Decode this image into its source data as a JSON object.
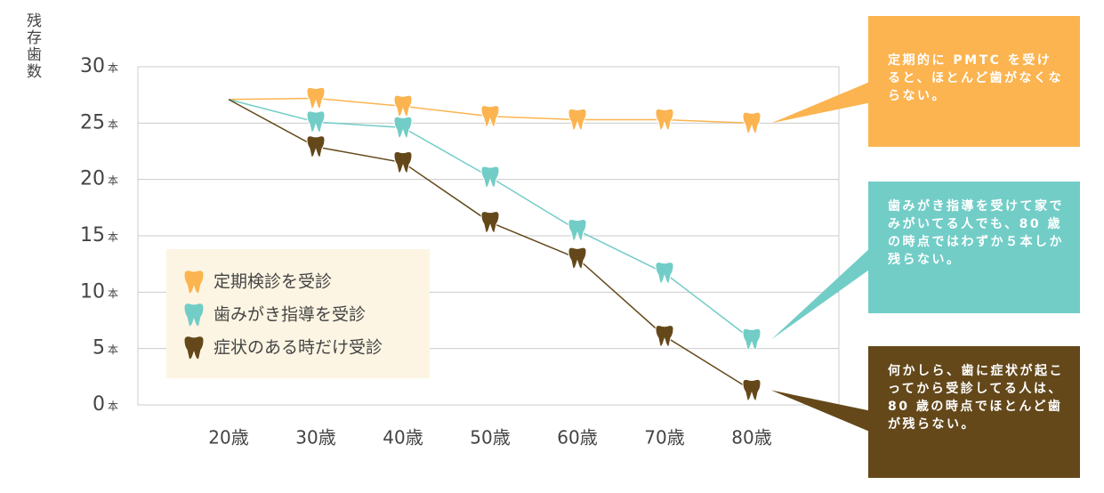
{
  "chart_data": {
    "type": "line",
    "y_label": "残存歯数",
    "y_unit": "本",
    "categories": [
      "20歳",
      "30歳",
      "40歳",
      "50歳",
      "60歳",
      "70歳",
      "80歳"
    ],
    "series": [
      {
        "name": "定期検診を受診",
        "color": "#fbb450",
        "values": [
          27.1,
          27.2,
          26.5,
          25.6,
          25.3,
          25.3,
          25.0
        ]
      },
      {
        "name": "歯みがき指導を受診",
        "color": "#72cdc7",
        "values": [
          27.1,
          25.1,
          24.6,
          20.2,
          15.5,
          11.7,
          5.8
        ]
      },
      {
        "name": "症状のある時だけ受診",
        "color": "#64481a",
        "values": [
          27.1,
          22.9,
          21.5,
          16.2,
          13.0,
          6.1,
          1.3
        ]
      }
    ],
    "ylim": [
      0,
      30
    ],
    "yticks": [
      0,
      5,
      10,
      15,
      20,
      25,
      30
    ],
    "grid": true,
    "annotations": [
      {
        "text": "定期的に PMTC を受けると、ほとんど歯がなくならない。",
        "color": "#fbb450"
      },
      {
        "text": "歯みがき指導を受けて家でみがいてる人でも、80 歳の時点ではわずか５本しか残らない。",
        "color": "#72cdc7"
      },
      {
        "text": "何かしら、歯に症状が起こってから受診してる人は、80 歳の時点でほとんど歯が残らない。",
        "color": "#64481a"
      }
    ]
  }
}
